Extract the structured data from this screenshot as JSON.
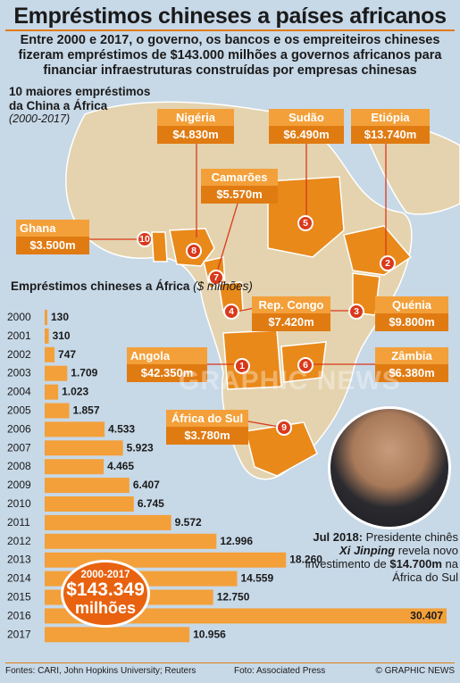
{
  "title": "Empréstimos chineses a países africanos",
  "subtitle": "Entre 2000 e 2017, o governo, os bancos e os empreiteiros chineses fizeram empréstimos de $143.000 milhões a governos africanos para financiar infraestruturas construídas por empresas chinesas",
  "map": {
    "title_line1": "10 maiores empréstimos",
    "title_line2": "da China a África",
    "period": "(2000-2017)",
    "loans": [
      {
        "rank": "1",
        "country": "Angola",
        "amount": "$42.350m"
      },
      {
        "rank": "2",
        "country": "Etiópia",
        "amount": "$13.740m"
      },
      {
        "rank": "3",
        "country": "Quénia",
        "amount": "$9.800m"
      },
      {
        "rank": "4",
        "country": "Rep. Congo",
        "amount": "$7.420m"
      },
      {
        "rank": "5",
        "country": "Sudão",
        "amount": "$6.490m"
      },
      {
        "rank": "6",
        "country": "Zâmbia",
        "amount": "$6.380m"
      },
      {
        "rank": "7",
        "country": "Camarões",
        "amount": "$5.570m"
      },
      {
        "rank": "8",
        "country": "Nigéria",
        "amount": "$4.830m"
      },
      {
        "rank": "9",
        "country": "África do Sul",
        "amount": "$3.780m"
      },
      {
        "rank": "10",
        "country": "Ghana",
        "amount": "$3.500m"
      }
    ]
  },
  "bar_chart": {
    "title": "Empréstimos chineses a África",
    "unit": "($ milhões)"
  },
  "chart_data": {
    "type": "bar",
    "orientation": "horizontal",
    "title": "Empréstimos chineses a África",
    "ylabel": "($ milhões)",
    "categories": [
      "2000",
      "2001",
      "2002",
      "2003",
      "2004",
      "2005",
      "2006",
      "2007",
      "2008",
      "2009",
      "2010",
      "2011",
      "2012",
      "2013",
      "2014",
      "2015",
      "2016",
      "2017"
    ],
    "values": [
      130,
      310,
      747,
      1709,
      1023,
      1857,
      4533,
      5923,
      4465,
      6407,
      6745,
      9572,
      12996,
      18260,
      14559,
      12750,
      30407,
      10956
    ],
    "value_labels": [
      "130",
      "310",
      "747",
      "1.709",
      "1.023",
      "1.857",
      "4.533",
      "5.923",
      "4.465",
      "6.407",
      "6.745",
      "9.572",
      "12.996",
      "18.260",
      "14.559",
      "12.750",
      "30.407",
      "10.956"
    ],
    "xlim": [
      0,
      30407
    ],
    "bar_color": "#f3a03a"
  },
  "total_badge": {
    "period": "2000-2017",
    "value": "$143.349",
    "word": "milhões"
  },
  "photo_caption": {
    "date": "Jul 2018:",
    "text_before": " Presidente chinês ",
    "name": "Xi Jinping",
    "text_after": " revela novo investimento de ",
    "amount": "$14.700m",
    "text_end": " na África do Sul"
  },
  "watermark": "GRAPHIC NEWS",
  "footer": {
    "sources": "Fontes: CARI, John Hopkins University; Reuters",
    "photo": "Foto: Associated Press",
    "brand": "© GRAPHIC NEWS"
  }
}
